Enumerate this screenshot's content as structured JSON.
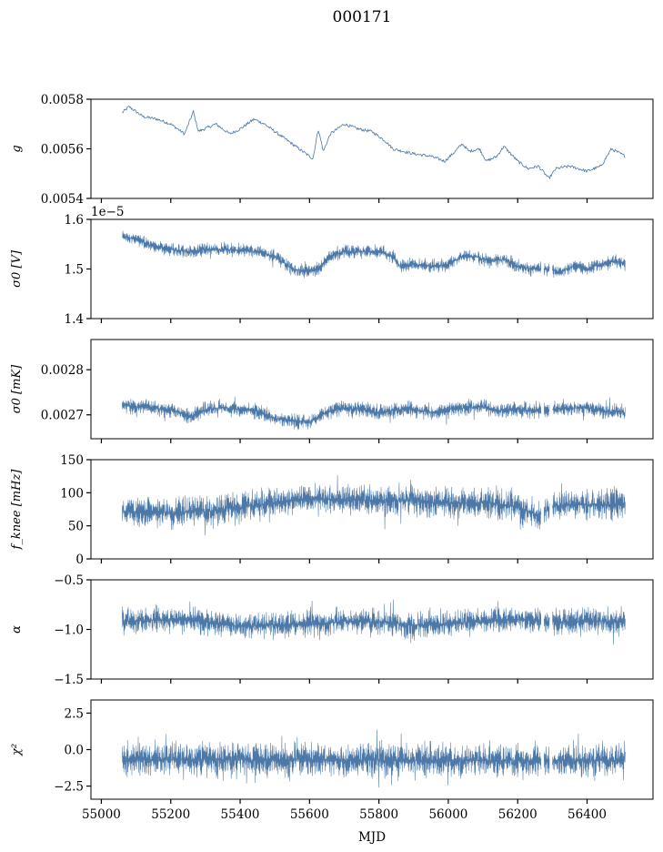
{
  "figure": {
    "title": "000171",
    "xlabel": "MJD"
  },
  "chart_data": [
    {
      "type": "line",
      "name": "g-panel",
      "ylabel": "g",
      "ylim": [
        0.0054,
        0.0058
      ],
      "yticks": [
        0.0054,
        0.0056,
        0.0058
      ],
      "ytick_labels": [
        "0.0054",
        "0.0056",
        "0.0058"
      ],
      "xlim": [
        54970,
        56590
      ],
      "x_start": 55060,
      "x_end": 56510,
      "band": 1.2e-05,
      "profile": [
        [
          55060,
          0.005745
        ],
        [
          55080,
          0.00577
        ],
        [
          55120,
          0.00573
        ],
        [
          55160,
          0.00572
        ],
        [
          55200,
          0.0057
        ],
        [
          55240,
          0.00566
        ],
        [
          55265,
          0.00575
        ],
        [
          55280,
          0.00567
        ],
        [
          55330,
          0.0057
        ],
        [
          55370,
          0.00566
        ],
        [
          55400,
          0.00568
        ],
        [
          55440,
          0.00572
        ],
        [
          55470,
          0.0057
        ],
        [
          55500,
          0.00567
        ],
        [
          55540,
          0.00563
        ],
        [
          55580,
          0.00559
        ],
        [
          55610,
          0.00556
        ],
        [
          55625,
          0.00568
        ],
        [
          55640,
          0.00559
        ],
        [
          55660,
          0.00566
        ],
        [
          55700,
          0.0057
        ],
        [
          55740,
          0.00568
        ],
        [
          55780,
          0.00567
        ],
        [
          55820,
          0.00563
        ],
        [
          55840,
          0.0056
        ],
        [
          55870,
          0.00559
        ],
        [
          55900,
          0.00558
        ],
        [
          55950,
          0.00557
        ],
        [
          55990,
          0.00555
        ],
        [
          56020,
          0.00559
        ],
        [
          56040,
          0.00562
        ],
        [
          56060,
          0.00559
        ],
        [
          56090,
          0.0056
        ],
        [
          56110,
          0.00555
        ],
        [
          56140,
          0.00557
        ],
        [
          56160,
          0.00561
        ],
        [
          56180,
          0.00558
        ],
        [
          56200,
          0.00555
        ],
        [
          56230,
          0.00552
        ],
        [
          56260,
          0.00553
        ],
        [
          56290,
          0.00548
        ],
        [
          56310,
          0.00552
        ],
        [
          56350,
          0.00553
        ],
        [
          56400,
          0.00551
        ],
        [
          56440,
          0.00553
        ],
        [
          56470,
          0.0056
        ],
        [
          56510,
          0.00557
        ]
      ]
    },
    {
      "type": "line",
      "name": "sigma-V-panel",
      "ylabel": "σ0 [V]",
      "offset_text": "1e−5",
      "ylim": [
        1.4,
        1.6
      ],
      "yticks": [
        1.4,
        1.5,
        1.6
      ],
      "ytick_labels": [
        "1.4",
        "1.5",
        "1.6"
      ],
      "xlim": [
        54970,
        56590
      ],
      "x_start": 55060,
      "x_end": 56510,
      "band": 0.014,
      "gaps": [
        [
          56268,
          56276
        ],
        [
          56292,
          56300
        ]
      ],
      "profile": [
        [
          55060,
          1.565
        ],
        [
          55100,
          1.56
        ],
        [
          55150,
          1.545
        ],
        [
          55200,
          1.54
        ],
        [
          55250,
          1.535
        ],
        [
          55300,
          1.54
        ],
        [
          55350,
          1.54
        ],
        [
          55400,
          1.538
        ],
        [
          55450,
          1.535
        ],
        [
          55500,
          1.525
        ],
        [
          55550,
          1.5
        ],
        [
          55600,
          1.495
        ],
        [
          55630,
          1.505
        ],
        [
          55660,
          1.525
        ],
        [
          55700,
          1.535
        ],
        [
          55750,
          1.535
        ],
        [
          55800,
          1.535
        ],
        [
          55840,
          1.525
        ],
        [
          55860,
          1.505
        ],
        [
          55900,
          1.51
        ],
        [
          55950,
          1.505
        ],
        [
          56000,
          1.51
        ],
        [
          56040,
          1.525
        ],
        [
          56080,
          1.525
        ],
        [
          56120,
          1.515
        ],
        [
          56160,
          1.52
        ],
        [
          56200,
          1.505
        ],
        [
          56240,
          1.5
        ],
        [
          56280,
          1.5
        ],
        [
          56320,
          1.495
        ],
        [
          56360,
          1.505
        ],
        [
          56400,
          1.5
        ],
        [
          56440,
          1.51
        ],
        [
          56480,
          1.515
        ],
        [
          56510,
          1.51
        ]
      ]
    },
    {
      "type": "line",
      "name": "sigma-mK-panel",
      "ylabel": "σ0 [mK]",
      "ylim": [
        0.002647,
        0.002867
      ],
      "yticks": [
        0.0027,
        0.0028
      ],
      "ytick_labels": [
        "0.0027",
        "0.0028"
      ],
      "xlim": [
        54970,
        56590
      ],
      "x_start": 55060,
      "x_end": 56510,
      "band": 1.8e-05,
      "gaps": [
        [
          56268,
          56276
        ],
        [
          56292,
          56300
        ]
      ],
      "profile": [
        [
          55060,
          0.002722
        ],
        [
          55100,
          0.002718
        ],
        [
          55150,
          0.002715
        ],
        [
          55200,
          0.002712
        ],
        [
          55260,
          0.002695
        ],
        [
          55300,
          0.002712
        ],
        [
          55350,
          0.002716
        ],
        [
          55400,
          0.002712
        ],
        [
          55450,
          0.002708
        ],
        [
          55500,
          0.002692
        ],
        [
          55550,
          0.002688
        ],
        [
          55600,
          0.002685
        ],
        [
          55650,
          0.002705
        ],
        [
          55700,
          0.002715
        ],
        [
          55750,
          0.002712
        ],
        [
          55800,
          0.002705
        ],
        [
          55850,
          0.002712
        ],
        [
          55900,
          0.002712
        ],
        [
          55950,
          0.002706
        ],
        [
          56000,
          0.002712
        ],
        [
          56050,
          0.002715
        ],
        [
          56100,
          0.002718
        ],
        [
          56150,
          0.00271
        ],
        [
          56200,
          0.002712
        ],
        [
          56250,
          0.002708
        ],
        [
          56300,
          0.002712
        ],
        [
          56350,
          0.002715
        ],
        [
          56400,
          0.002716
        ],
        [
          56450,
          0.002708
        ],
        [
          56510,
          0.002705
        ]
      ]
    },
    {
      "type": "line",
      "name": "fknee-panel",
      "ylabel": "f_knee [mHz]",
      "ylim": [
        0,
        150
      ],
      "yticks": [
        0,
        50,
        100,
        150
      ],
      "ytick_labels": [
        "0",
        "50",
        "100",
        "150"
      ],
      "xlim": [
        54970,
        56590
      ],
      "x_start": 55060,
      "x_end": 56510,
      "band": 24,
      "gaps": [
        [
          56268,
          56276
        ],
        [
          56292,
          56300
        ]
      ],
      "profile": [
        [
          55060,
          70
        ],
        [
          55200,
          70
        ],
        [
          55300,
          72
        ],
        [
          55400,
          78
        ],
        [
          55500,
          85
        ],
        [
          55600,
          90
        ],
        [
          55700,
          90
        ],
        [
          55800,
          88
        ],
        [
          55900,
          88
        ],
        [
          56000,
          84
        ],
        [
          56100,
          85
        ],
        [
          56200,
          80
        ],
        [
          56260,
          65
        ],
        [
          56300,
          80
        ],
        [
          56400,
          82
        ],
        [
          56510,
          82
        ]
      ]
    },
    {
      "type": "line",
      "name": "alpha-panel",
      "ylabel": "α",
      "ylim": [
        -1.5,
        -0.5
      ],
      "yticks": [
        -1.5,
        -1.0,
        -0.5
      ],
      "ytick_labels": [
        "−1.5",
        "−1.0",
        "−0.5"
      ],
      "xlim": [
        54970,
        56590
      ],
      "x_start": 55060,
      "x_end": 56510,
      "band": 0.14,
      "gaps": [
        [
          56268,
          56276
        ],
        [
          56292,
          56300
        ]
      ],
      "profile": [
        [
          55060,
          -0.92
        ],
        [
          55200,
          -0.9
        ],
        [
          55300,
          -0.92
        ],
        [
          55400,
          -0.97
        ],
        [
          55500,
          -0.95
        ],
        [
          55600,
          -0.95
        ],
        [
          55700,
          -0.92
        ],
        [
          55800,
          -0.92
        ],
        [
          55900,
          -0.96
        ],
        [
          56000,
          -0.94
        ],
        [
          56100,
          -0.92
        ],
        [
          56200,
          -0.9
        ],
        [
          56300,
          -0.92
        ],
        [
          56400,
          -0.92
        ],
        [
          56510,
          -0.92
        ]
      ]
    },
    {
      "type": "line",
      "name": "chi2-panel",
      "ylabel": "χ²",
      "ylim": [
        -3.4,
        3.4
      ],
      "yticks": [
        -2.5,
        0.0,
        2.5
      ],
      "ytick_labels": [
        "−2.5",
        "0.0",
        "2.5"
      ],
      "xlim": [
        54970,
        56590
      ],
      "x_start": 55060,
      "x_end": 56510,
      "band": 1.25,
      "gaps": [
        [
          56268,
          56276
        ],
        [
          56292,
          56300
        ]
      ],
      "profile": [
        [
          55060,
          -0.7
        ],
        [
          55500,
          -0.7
        ],
        [
          56000,
          -0.75
        ],
        [
          56510,
          -0.75
        ]
      ]
    }
  ],
  "x_axis": {
    "ticks": [
      55000,
      55200,
      55400,
      55600,
      55800,
      56000,
      56200,
      56400
    ],
    "tick_labels": [
      "55000",
      "55200",
      "55400",
      "55600",
      "55800",
      "56000",
      "56200",
      "56400"
    ]
  },
  "colors": {
    "series": "#4c78a8"
  }
}
